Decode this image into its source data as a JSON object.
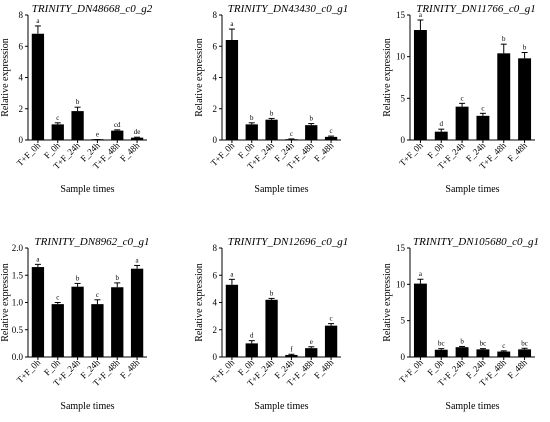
{
  "chart_data": [
    {
      "type": "bar",
      "title": "TRINITY_DN48668_c0_g2",
      "xlabel": "Sample times",
      "ylabel": "Relative expression",
      "ylim": [
        0,
        8
      ],
      "yticks": [
        0,
        2,
        4,
        6,
        8
      ],
      "categories": [
        "T+F_0h",
        "F_0h",
        "T+F_24h",
        "F_24h",
        "T+F_48h",
        "F_48h"
      ],
      "values": [
        6.8,
        1.0,
        1.85,
        0.02,
        0.6,
        0.15
      ],
      "errors": [
        0.5,
        0.1,
        0.25,
        0.01,
        0.05,
        0.03
      ],
      "significance": [
        "a",
        "c",
        "b",
        "e",
        "cd",
        "de"
      ],
      "bar_color": "#000000"
    },
    {
      "type": "bar",
      "title": "TRINITY_DN43430_c0_g1",
      "xlabel": "Sample times",
      "ylabel": "Relative expression",
      "ylim": [
        0,
        8
      ],
      "yticks": [
        0,
        2,
        4,
        6,
        8
      ],
      "categories": [
        "T+F_0h",
        "F_0h",
        "T+F_24h",
        "F_24h",
        "T+F_48h",
        "F_48h"
      ],
      "values": [
        6.4,
        1.0,
        1.3,
        0.05,
        0.95,
        0.2
      ],
      "errors": [
        0.7,
        0.1,
        0.08,
        0.02,
        0.1,
        0.05
      ],
      "significance": [
        "a",
        "b",
        "b",
        "c",
        "b",
        "c"
      ],
      "bar_color": "#000000"
    },
    {
      "type": "bar",
      "title": "TRINITY_DN11766_c0_g1",
      "xlabel": "Sample times",
      "ylabel": "Relative expression",
      "ylim": [
        0,
        15
      ],
      "yticks": [
        0,
        5,
        10,
        15
      ],
      "categories": [
        "T+F_0h",
        "F_0h",
        "T+F_24h",
        "F_24h",
        "T+F_48h",
        "F_48h"
      ],
      "values": [
        13.2,
        1.0,
        4.0,
        2.9,
        10.4,
        9.8
      ],
      "errors": [
        1.2,
        0.3,
        0.4,
        0.3,
        1.1,
        0.7
      ],
      "significance": [
        "a",
        "d",
        "c",
        "c",
        "b",
        "b"
      ],
      "bar_color": "#000000"
    },
    {
      "type": "bar",
      "title": "TRINITY_DN8962_c0_g1",
      "xlabel": "Sample times",
      "ylabel": "Relative expression",
      "ylim": [
        0,
        2.0
      ],
      "yticks": [
        "0.0",
        "0.5",
        "1.0",
        "1.5",
        "2.0"
      ],
      "categories": [
        "T+F_0h",
        "F_0h",
        "T+F_24h",
        "F_24h",
        "T+F_48h",
        "F_48h"
      ],
      "values": [
        1.65,
        0.97,
        1.29,
        0.97,
        1.28,
        1.62
      ],
      "errors": [
        0.05,
        0.03,
        0.06,
        0.08,
        0.08,
        0.06
      ],
      "significance": [
        "a",
        "c",
        "b",
        "c",
        "b",
        "a"
      ],
      "bar_color": "#000000"
    },
    {
      "type": "bar",
      "title": "TRINITY_DN12696_c0_g1",
      "xlabel": "Sample times",
      "ylabel": "Relative expression",
      "ylim": [
        0,
        8
      ],
      "yticks": [
        0,
        2,
        4,
        6,
        8
      ],
      "categories": [
        "T+F_0h",
        "F_0h",
        "T+F_24h",
        "F_24h",
        "T+F_48h",
        "F_48h"
      ],
      "values": [
        5.3,
        1.0,
        4.2,
        0.15,
        0.65,
        2.3
      ],
      "errors": [
        0.4,
        0.2,
        0.1,
        0.05,
        0.1,
        0.15
      ],
      "significance": [
        "a",
        "d",
        "b",
        "f",
        "e",
        "c"
      ],
      "bar_color": "#000000"
    },
    {
      "type": "bar",
      "title": "TRINITY_DN105680_c0_g1",
      "xlabel": "Sample times",
      "ylabel": "Relative expression",
      "ylim": [
        0,
        15
      ],
      "yticks": [
        0,
        5,
        10,
        15
      ],
      "categories": [
        "T+F_0h",
        "F_0h",
        "T+F_24h",
        "F_24h",
        "T+F_48h",
        "F_48h"
      ],
      "values": [
        10.1,
        1.0,
        1.35,
        1.05,
        0.75,
        1.05
      ],
      "errors": [
        0.6,
        0.15,
        0.1,
        0.1,
        0.1,
        0.15
      ],
      "significance": [
        "a",
        "bc",
        "b",
        "bc",
        "c",
        "bc"
      ],
      "bar_color": "#000000"
    }
  ]
}
